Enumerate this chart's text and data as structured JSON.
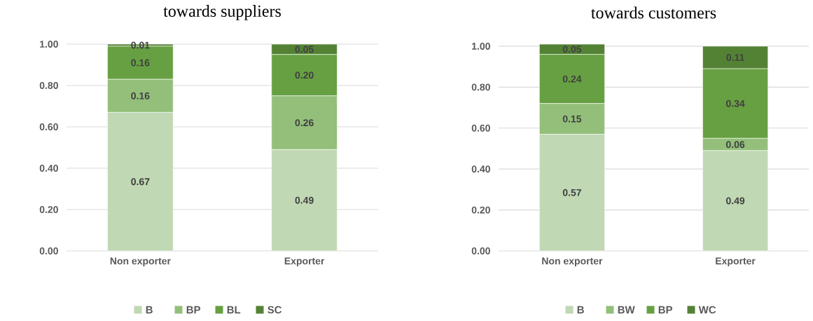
{
  "chart_data": [
    {
      "type": "bar",
      "title": "towards suppliers",
      "stacked": true,
      "categories": [
        "Non exporter",
        "Exporter"
      ],
      "series": [
        {
          "name": "B",
          "color": "#c0d8b4",
          "values": [
            0.67,
            0.49
          ],
          "value_labels": [
            "0.67",
            "0.49"
          ]
        },
        {
          "name": "BP",
          "color": "#93bf7a",
          "values": [
            0.16,
            0.26
          ],
          "value_labels": [
            "0.16",
            "0.26"
          ]
        },
        {
          "name": "BL",
          "color": "#67a042",
          "values": [
            0.16,
            0.2
          ],
          "value_labels": [
            "0.16",
            "0.20"
          ]
        },
        {
          "name": "SC",
          "color": "#548235",
          "values": [
            0.01,
            0.05
          ],
          "value_labels": [
            "0.01",
            "0.05"
          ]
        }
      ],
      "ylim": [
        0,
        1
      ],
      "yticks": [
        {
          "value": 0,
          "label": "0.00"
        },
        {
          "value": 0.2,
          "label": "0.20"
        },
        {
          "value": 0.4,
          "label": "0.40"
        },
        {
          "value": 0.6,
          "label": "0.60"
        },
        {
          "value": 0.8,
          "label": "0.80"
        },
        {
          "value": 1,
          "label": "1.00"
        }
      ],
      "grid": "y",
      "legend": "bottom"
    },
    {
      "type": "bar",
      "title": "towards customers",
      "stacked": true,
      "categories": [
        "Non exporter",
        "Exporter"
      ],
      "series": [
        {
          "name": "B",
          "color": "#c0d8b4",
          "values": [
            0.57,
            0.49
          ],
          "value_labels": [
            "0.57",
            "0.49"
          ]
        },
        {
          "name": "BW",
          "color": "#93bf7a",
          "values": [
            0.15,
            0.06
          ],
          "value_labels": [
            "0.15",
            "0.06"
          ]
        },
        {
          "name": "BP",
          "color": "#67a042",
          "values": [
            0.24,
            0.34
          ],
          "value_labels": [
            "0.24",
            "0.34"
          ]
        },
        {
          "name": "WC",
          "color": "#548235",
          "values": [
            0.05,
            0.11
          ],
          "value_labels": [
            "0.05",
            "0.11"
          ]
        }
      ],
      "ylim": [
        0,
        1.01
      ],
      "yticks": [
        {
          "value": 0,
          "label": "0.00"
        },
        {
          "value": 0.2,
          "label": "0.20"
        },
        {
          "value": 0.4,
          "label": "0.40"
        },
        {
          "value": 0.6,
          "label": "0.60"
        },
        {
          "value": 0.8,
          "label": "0.80"
        },
        {
          "value": 1,
          "label": "1.00"
        }
      ],
      "grid": "y",
      "legend": "bottom"
    }
  ]
}
